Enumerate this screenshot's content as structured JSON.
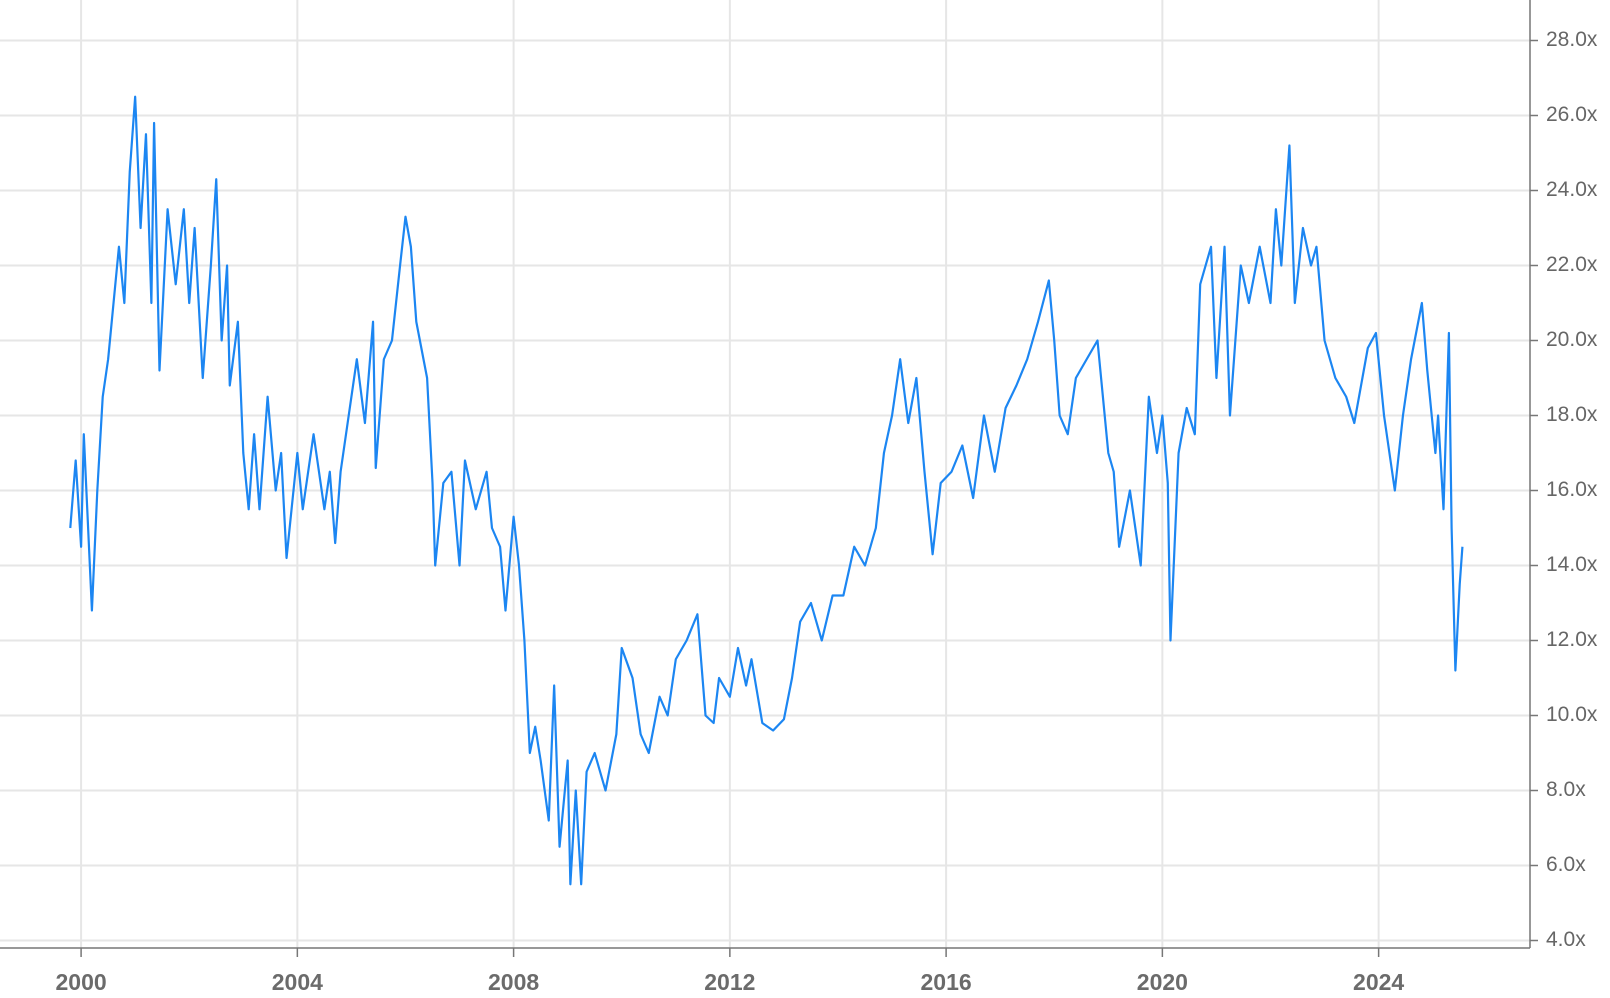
{
  "chart_data": {
    "type": "line",
    "color": "#1c86f2",
    "grid": true,
    "x": [
      1999.8,
      1999.9,
      2000.0,
      2000.05,
      2000.2,
      2000.3,
      2000.4,
      2000.5,
      2000.6,
      2000.7,
      2000.8,
      2000.9,
      2001.0,
      2001.1,
      2001.2,
      2001.3,
      2001.35,
      2001.45,
      2001.6,
      2001.75,
      2001.9,
      2002.0,
      2002.1,
      2002.25,
      2002.4,
      2002.5,
      2002.6,
      2002.7,
      2002.75,
      2002.9,
      2003.0,
      2003.1,
      2003.2,
      2003.3,
      2003.45,
      2003.6,
      2003.7,
      2003.8,
      2004.0,
      2004.1,
      2004.3,
      2004.5,
      2004.6,
      2004.7,
      2004.8,
      2004.95,
      2005.1,
      2005.25,
      2005.4,
      2005.45,
      2005.6,
      2005.75,
      2005.9,
      2006.0,
      2006.1,
      2006.2,
      2006.4,
      2006.5,
      2006.55,
      2006.7,
      2006.85,
      2007.0,
      2007.1,
      2007.3,
      2007.5,
      2007.6,
      2007.75,
      2007.85,
      2008.0,
      2008.1,
      2008.2,
      2008.3,
      2008.4,
      2008.5,
      2008.65,
      2008.75,
      2008.85,
      2009.0,
      2009.05,
      2009.15,
      2009.25,
      2009.35,
      2009.5,
      2009.7,
      2009.9,
      2010.0,
      2010.2,
      2010.35,
      2010.5,
      2010.7,
      2010.85,
      2011.0,
      2011.2,
      2011.4,
      2011.55,
      2011.7,
      2011.8,
      2012.0,
      2012.15,
      2012.3,
      2012.4,
      2012.6,
      2012.8,
      2013.0,
      2013.15,
      2013.3,
      2013.5,
      2013.7,
      2013.9,
      2014.1,
      2014.3,
      2014.5,
      2014.7,
      2014.85,
      2015.0,
      2015.15,
      2015.3,
      2015.45,
      2015.6,
      2015.75,
      2015.9,
      2016.1,
      2016.3,
      2016.5,
      2016.7,
      2016.9,
      2017.1,
      2017.3,
      2017.5,
      2017.7,
      2017.9,
      2018.0,
      2018.1,
      2018.25,
      2018.4,
      2018.6,
      2018.8,
      2019.0,
      2019.1,
      2019.2,
      2019.4,
      2019.6,
      2019.75,
      2019.9,
      2020.0,
      2020.1,
      2020.15,
      2020.3,
      2020.45,
      2020.6,
      2020.7,
      2020.9,
      2021.0,
      2021.15,
      2021.25,
      2021.45,
      2021.6,
      2021.8,
      2022.0,
      2022.1,
      2022.2,
      2022.35,
      2022.45,
      2022.6,
      2022.75,
      2022.85,
      2023.0,
      2023.2,
      2023.4,
      2023.55,
      2023.7,
      2023.8,
      2023.95,
      2024.1,
      2024.3,
      2024.45,
      2024.6,
      2024.8,
      2024.9,
      2025.05,
      2025.1,
      2025.2,
      2025.3,
      2025.35,
      2025.42,
      2025.5,
      2025.55
    ],
    "values": [
      15.0,
      16.8,
      14.5,
      17.5,
      12.8,
      16,
      18.5,
      19.5,
      21.0,
      22.5,
      21,
      24.5,
      26.5,
      23,
      25.5,
      21,
      25.8,
      19.2,
      23.5,
      21.5,
      23.5,
      21,
      23,
      19,
      22,
      24.3,
      20,
      22,
      18.8,
      20.5,
      17,
      15.5,
      17.5,
      15.5,
      18.5,
      16,
      17,
      14.2,
      17,
      15.5,
      17.5,
      15.5,
      16.5,
      14.6,
      16.5,
      18,
      19.5,
      17.8,
      20.5,
      16.6,
      19.5,
      20,
      22,
      23.3,
      22.5,
      20.5,
      19,
      16.2,
      14.0,
      16.2,
      16.5,
      14,
      16.8,
      15.5,
      16.5,
      15,
      14.5,
      12.8,
      15.3,
      14,
      12,
      9,
      9.7,
      8.8,
      7.2,
      10.8,
      6.5,
      8.8,
      5.5,
      8,
      5.5,
      8.5,
      9,
      8,
      9.5,
      11.8,
      11,
      9.5,
      9,
      10.5,
      10,
      11.5,
      12,
      12.7,
      10,
      9.8,
      11,
      10.5,
      11.8,
      10.8,
      11.5,
      9.8,
      9.6,
      9.9,
      11,
      12.5,
      13,
      12,
      13.2,
      13.2,
      14.5,
      14,
      15,
      17,
      18,
      19.5,
      17.8,
      19,
      16.5,
      14.3,
      16.2,
      16.5,
      17.2,
      15.8,
      18,
      16.5,
      18.2,
      18.8,
      19.5,
      20.5,
      21.6,
      20,
      18,
      17.5,
      19,
      19.5,
      20,
      17,
      16.5,
      14.5,
      16,
      14,
      18.5,
      17,
      18,
      16.2,
      12,
      17,
      18.2,
      17.5,
      21.5,
      22.5,
      19,
      22.5,
      18,
      22,
      21,
      22.5,
      21,
      23.5,
      22,
      25.2,
      21,
      23,
      22,
      22.5,
      20,
      19,
      18.5,
      17.8,
      19,
      19.8,
      20.2,
      18,
      16,
      18,
      19.5,
      21,
      19.2,
      17,
      18,
      15.5,
      20.2,
      15,
      11.2,
      13.5,
      14.5
    ],
    "xlim": [
      1998.5,
      2026.8
    ],
    "xticks": [
      2000,
      2004,
      2008,
      2012,
      2016,
      2020,
      2024
    ],
    "ylim": [
      3.8,
      29.08
    ],
    "yticks": [
      {
        "value": 4,
        "label": "4.0x"
      },
      {
        "value": 6,
        "label": "6.0x"
      },
      {
        "value": 8,
        "label": "8.0x"
      },
      {
        "value": 10,
        "label": "10.0x"
      },
      {
        "value": 12,
        "label": "12.0x"
      },
      {
        "value": 14,
        "label": "14.0x"
      },
      {
        "value": 16,
        "label": "16.0x"
      },
      {
        "value": 18,
        "label": "18.0x"
      },
      {
        "value": 20,
        "label": "20.0x"
      },
      {
        "value": 22,
        "label": "22.0x"
      },
      {
        "value": 24,
        "label": "24.0x"
      },
      {
        "value": 26,
        "label": "26.0x"
      },
      {
        "value": 28,
        "label": "28.0x"
      }
    ]
  }
}
